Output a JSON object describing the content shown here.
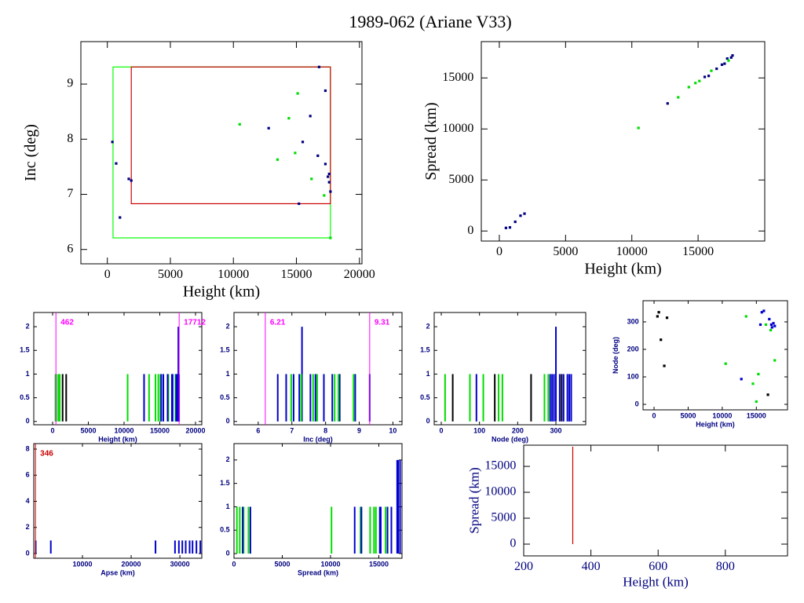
{
  "title": "1989-062 (Ariane V33)",
  "chart_data": [
    {
      "type": "scatter",
      "xlabel": "Height (km)",
      "ylabel": "Inc (deg)",
      "xlim": [
        -2100,
        20200
      ],
      "ylim": [
        5.74,
        9.77
      ],
      "xticks": [
        0,
        5000,
        10000,
        15000,
        20000
      ],
      "yticks": [
        6,
        7,
        8,
        9
      ],
      "boxes": [
        {
          "color": "#00ff00",
          "x": [
            450,
            17700
          ],
          "y": [
            6.21,
            9.31
          ]
        },
        {
          "color": "#cc0000",
          "x": [
            1900,
            17700
          ],
          "y": [
            6.83,
            9.31
          ]
        }
      ],
      "series": [
        {
          "color": "#000080",
          "x": [
            400,
            700,
            1000,
            1700,
            1900,
            12800,
            15200,
            15500,
            16100,
            16800,
            16700,
            17300,
            17300,
            17500,
            17600,
            17600,
            17700
          ],
          "values": [
            7.95,
            7.56,
            6.58,
            7.28,
            7.25,
            8.2,
            6.83,
            7.95,
            8.42,
            9.31,
            7.7,
            8.88,
            7.55,
            7.32,
            7.37,
            7.22,
            7.05
          ]
        },
        {
          "color": "#00dd00",
          "x": [
            10500,
            13500,
            14400,
            14900,
            15100,
            16200,
            17200,
            17700
          ],
          "values": [
            8.27,
            7.63,
            8.38,
            7.75,
            8.83,
            7.28,
            6.98,
            6.21
          ]
        }
      ]
    },
    {
      "type": "scatter",
      "xlabel": "Height (km)",
      "ylabel": "Spread (km)",
      "xlim": [
        -1360,
        20030
      ],
      "ylim": [
        -985,
        18560
      ],
      "xticks": [
        0,
        5000,
        10000,
        15000
      ],
      "yticks": [
        0,
        5000,
        10000,
        15000
      ],
      "series": [
        {
          "color": "#000080",
          "x": [
            500,
            800,
            1200,
            1600,
            1900,
            12700,
            15500,
            15800,
            16400,
            16800,
            17000,
            17200,
            17500,
            17600
          ],
          "values": [
            300,
            350,
            900,
            1500,
            1700,
            12500,
            15100,
            15200,
            15900,
            16300,
            16400,
            16900,
            17000,
            17200
          ]
        },
        {
          "color": "#00dd00",
          "x": [
            10500,
            13500,
            14300,
            14800,
            15100,
            16000,
            17300
          ],
          "values": [
            10100,
            13100,
            14100,
            14500,
            14700,
            15700,
            16700
          ]
        }
      ]
    },
    {
      "type": "spike",
      "xlabel": "Height (km)",
      "xlim": [
        -2640,
        20880
      ],
      "ylim": [
        -0.07,
        2.3
      ],
      "xticks": [
        0,
        5000,
        10000,
        15000,
        20000
      ],
      "yticks": [
        0,
        0.5,
        1,
        1.5,
        2
      ],
      "markers": {
        "color": "#ff00ff",
        "values": [
          462,
          17712
        ]
      },
      "series": [
        {
          "color": "#00dd00",
          "x": [
            400,
            500,
            800,
            1000,
            10500,
            13500,
            14400,
            14800,
            15100,
            16200,
            17200
          ],
          "values": [
            1,
            1,
            1,
            1,
            1,
            1,
            1,
            1,
            1,
            1,
            1
          ]
        },
        {
          "color": "#0000cc",
          "x": [
            12800,
            15200,
            15500,
            16100,
            16700,
            16800,
            17300,
            17500,
            17600,
            17700
          ],
          "values": [
            1,
            1,
            1,
            1,
            1,
            1,
            1,
            1,
            2,
            1
          ]
        },
        {
          "color": "#000000",
          "x": [
            1400,
            1900
          ],
          "values": [
            1,
            1
          ]
        }
      ]
    },
    {
      "type": "spike",
      "xlabel": "Inc (deg)",
      "xlim": [
        5.28,
        10.27
      ],
      "ylim": [
        -0.07,
        2.3
      ],
      "xticks": [
        6,
        7,
        8,
        9,
        10
      ],
      "yticks": [
        0,
        0.5,
        1,
        1.5,
        2
      ],
      "markers": {
        "color": "#ff00ff",
        "values": [
          6.21,
          9.31
        ]
      },
      "series": [
        {
          "color": "#0000cc",
          "x": [
            6.58,
            6.83,
            7.05,
            7.22,
            7.3,
            7.55,
            7.7,
            7.95,
            8.2,
            8.42,
            8.88,
            9.31
          ],
          "values": [
            1,
            1,
            1,
            1,
            2,
            1,
            1,
            1,
            1,
            1,
            1,
            1
          ]
        },
        {
          "color": "#00dd00",
          "x": [
            6.98,
            7.28,
            7.63,
            7.75,
            8.27,
            8.38,
            8.83
          ],
          "values": [
            1,
            1,
            1,
            1,
            1,
            1,
            1
          ]
        }
      ]
    },
    {
      "type": "spike",
      "xlabel": "Node (deg)",
      "xlim": [
        -18.5,
        378
      ],
      "ylim": [
        -0.07,
        2.3
      ],
      "xticks": [
        0,
        100,
        200,
        300
      ],
      "yticks": [
        0,
        0.5,
        1,
        1.5,
        2
      ],
      "series": [
        {
          "color": "#00dd00",
          "x": [
            10,
            75,
            110,
            150,
            160,
            270,
            280
          ],
          "values": [
            1,
            1,
            1,
            1,
            1,
            1,
            1
          ]
        },
        {
          "color": "#0000cc",
          "x": [
            92,
            285,
            290,
            295,
            300,
            310,
            320,
            330,
            335,
            340
          ],
          "values": [
            1,
            1,
            1,
            1,
            2,
            1,
            1,
            1,
            1,
            1
          ]
        },
        {
          "color": "#000000",
          "x": [
            30,
            140,
            235,
            315
          ],
          "values": [
            1,
            1,
            1,
            1
          ]
        }
      ]
    },
    {
      "type": "scatter",
      "xlabel": "Height (km)",
      "ylabel": "Node (deg)",
      "xlim": [
        -1615,
        19570
      ],
      "ylim": [
        -20,
        377
      ],
      "xticks": [
        0,
        5000,
        10000,
        15000
      ],
      "yticks": [
        0,
        100,
        200,
        300
      ],
      "series": [
        {
          "color": "#000000",
          "x": [
            500,
            700,
            1000,
            1500,
            1900,
            16700
          ],
          "values": [
            320,
            335,
            235,
            140,
            315,
            35
          ]
        },
        {
          "color": "#00dd00",
          "x": [
            10500,
            13500,
            14500,
            15000,
            15300,
            16400,
            17100,
            17700
          ],
          "values": [
            148,
            320,
            75,
            10,
            110,
            290,
            270,
            160
          ]
        },
        {
          "color": "#0000cc",
          "x": [
            12800,
            15600,
            15800,
            16100,
            16900,
            17200,
            17500,
            17700,
            17300
          ],
          "values": [
            92,
            290,
            335,
            340,
            310,
            290,
            295,
            285,
            280
          ]
        }
      ]
    },
    {
      "type": "spike",
      "xlabel": "Apse (km)",
      "xlim": [
        0,
        34500
      ],
      "ylim": [
        -0.36,
        8.42
      ],
      "xticks": [
        10000,
        20000,
        30000
      ],
      "yticks": [
        0,
        2,
        4,
        6,
        8
      ],
      "markers": {
        "color": "#cc0000",
        "values": [
          346
        ]
      },
      "series": [
        {
          "color": "#0000cc",
          "x": [
            400,
            3500,
            25000,
            29000,
            29800,
            30500,
            31200,
            32000,
            32600,
            33400,
            34200
          ],
          "values": [
            1,
            1,
            1,
            1,
            1,
            1,
            1,
            1,
            1,
            1,
            1
          ]
        }
      ]
    },
    {
      "type": "spike",
      "xlabel": "Spread (km)",
      "xlim": [
        0,
        17400
      ],
      "ylim": [
        -0.1,
        2.35
      ],
      "xticks": [
        0,
        5000,
        10000,
        15000
      ],
      "yticks": [
        0,
        0.5,
        1,
        1.5,
        2
      ],
      "series": [
        {
          "color": "#00dd00",
          "x": [
            300,
            600,
            1000,
            1500,
            10100,
            13100,
            14100,
            14500,
            14700,
            15700
          ],
          "values": [
            1,
            1,
            1,
            1,
            1,
            1,
            1,
            1,
            1,
            1
          ]
        },
        {
          "color": "#0000cc",
          "x": [
            900,
            1700,
            12500,
            13200,
            15100,
            15200,
            15900,
            16300,
            16900,
            17000,
            17200
          ],
          "values": [
            1,
            1,
            1,
            1,
            1,
            1,
            1,
            1,
            2,
            2,
            2
          ]
        }
      ]
    },
    {
      "type": "line",
      "xlabel": "Height (km)",
      "ylabel": "Spread (km)",
      "xlim": [
        200,
        985
      ],
      "ylim": [
        -2270,
        19090
      ],
      "xticks": [
        200,
        400,
        600,
        800
      ],
      "yticks": [
        0,
        5000,
        10000,
        15000
      ],
      "series": [
        {
          "color": "#cc0000",
          "x": [
            346,
            346
          ],
          "values": [
            0,
            18800
          ]
        }
      ]
    }
  ]
}
